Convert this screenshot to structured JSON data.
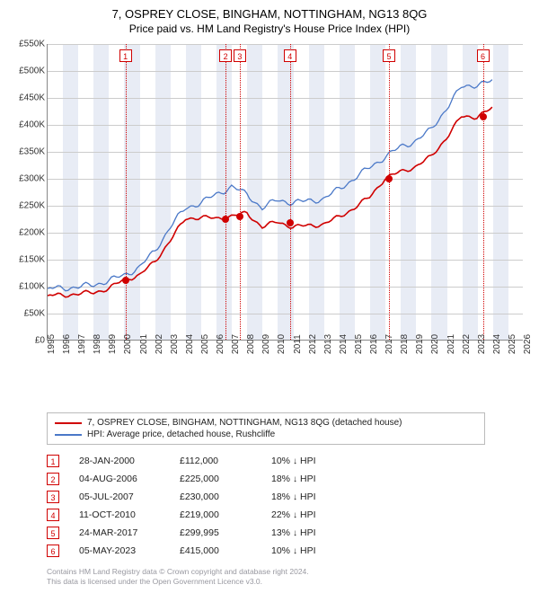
{
  "title": {
    "line1": "7, OSPREY CLOSE, BINGHAM, NOTTINGHAM, NG13 8QG",
    "line2": "Price paid vs. HM Land Registry's House Price Index (HPI)"
  },
  "chart": {
    "type": "line",
    "background_color": "#ffffff",
    "grid_color": "#cccccc",
    "band_color": "#e8ecf5",
    "x": {
      "min": 1995,
      "max": 2026,
      "tick_step": 1
    },
    "y": {
      "min": 0,
      "max": 550000,
      "tick_step": 50000,
      "tick_prefix": "£",
      "tick_suffix": "K",
      "tick_divisor": 1000
    },
    "series": [
      {
        "name": "HPI: Average price, detached house, Rushcliffe",
        "color": "#4a78c8",
        "width": 1.3,
        "points": [
          [
            1995,
            95000
          ],
          [
            1996,
            96000
          ],
          [
            1997,
            98000
          ],
          [
            1998,
            102000
          ],
          [
            1999,
            110000
          ],
          [
            2000,
            120000
          ],
          [
            2001,
            135000
          ],
          [
            2002,
            165000
          ],
          [
            2003,
            210000
          ],
          [
            2004,
            245000
          ],
          [
            2005,
            255000
          ],
          [
            2006,
            270000
          ],
          [
            2007,
            285000
          ],
          [
            2008,
            270000
          ],
          [
            2009,
            245000
          ],
          [
            2010,
            260000
          ],
          [
            2011,
            255000
          ],
          [
            2012,
            258000
          ],
          [
            2013,
            262000
          ],
          [
            2014,
            280000
          ],
          [
            2015,
            300000
          ],
          [
            2016,
            320000
          ],
          [
            2017,
            340000
          ],
          [
            2018,
            358000
          ],
          [
            2019,
            370000
          ],
          [
            2020,
            390000
          ],
          [
            2021,
            430000
          ],
          [
            2022,
            470000
          ],
          [
            2023,
            475000
          ],
          [
            2024,
            480000
          ]
        ]
      },
      {
        "name": "7, OSPREY CLOSE, BINGHAM, NOTTINGHAM, NG13 8QG (detached house)",
        "color": "#d00000",
        "width": 1.6,
        "points": [
          [
            1995,
            82000
          ],
          [
            1996,
            83000
          ],
          [
            1997,
            85000
          ],
          [
            1998,
            88000
          ],
          [
            1999,
            95000
          ],
          [
            2000,
            112000
          ],
          [
            2001,
            120000
          ],
          [
            2002,
            145000
          ],
          [
            2003,
            185000
          ],
          [
            2004,
            225000
          ],
          [
            2005,
            228000
          ],
          [
            2006,
            225000
          ],
          [
            2007,
            230000
          ],
          [
            2008,
            235000
          ],
          [
            2009,
            210000
          ],
          [
            2010,
            219000
          ],
          [
            2011,
            210000
          ],
          [
            2012,
            212000
          ],
          [
            2013,
            215000
          ],
          [
            2014,
            228000
          ],
          [
            2015,
            245000
          ],
          [
            2016,
            265000
          ],
          [
            2017,
            299995
          ],
          [
            2018,
            312000
          ],
          [
            2019,
            322000
          ],
          [
            2020,
            340000
          ],
          [
            2021,
            375000
          ],
          [
            2022,
            415000
          ],
          [
            2023,
            415000
          ],
          [
            2024,
            430000
          ]
        ]
      }
    ],
    "transactions": [
      {
        "n": "1",
        "year": 2000.07,
        "price": 112000,
        "date": "28-JAN-2000",
        "delta": "10%",
        "dir": "↓",
        "vs": "HPI"
      },
      {
        "n": "2",
        "year": 2006.59,
        "price": 225000,
        "date": "04-AUG-2006",
        "delta": "18%",
        "dir": "↓",
        "vs": "HPI"
      },
      {
        "n": "3",
        "year": 2007.51,
        "price": 230000,
        "date": "05-JUL-2007",
        "delta": "18%",
        "dir": "↓",
        "vs": "HPI"
      },
      {
        "n": "4",
        "year": 2010.78,
        "price": 219000,
        "date": "11-OCT-2010",
        "delta": "22%",
        "dir": "↓",
        "vs": "HPI"
      },
      {
        "n": "5",
        "year": 2017.23,
        "price": 299995,
        "date": "24-MAR-2017",
        "delta": "13%",
        "dir": "↓",
        "vs": "HPI"
      },
      {
        "n": "6",
        "year": 2023.34,
        "price": 415000,
        "date": "05-MAY-2023",
        "delta": "10%",
        "dir": "↓",
        "vs": "HPI"
      }
    ],
    "marker_color": "#d00000"
  },
  "legend": {
    "items": [
      {
        "color": "#d00000",
        "label": "7, OSPREY CLOSE, BINGHAM, NOTTINGHAM, NG13 8QG (detached house)"
      },
      {
        "color": "#4a78c8",
        "label": "HPI: Average price, detached house, Rushcliffe"
      }
    ]
  },
  "table": {
    "price_prefix": "£"
  },
  "footer": {
    "line1": "Contains HM Land Registry data © Crown copyright and database right 2024.",
    "line2": "This data is licensed under the Open Government Licence v3.0."
  }
}
